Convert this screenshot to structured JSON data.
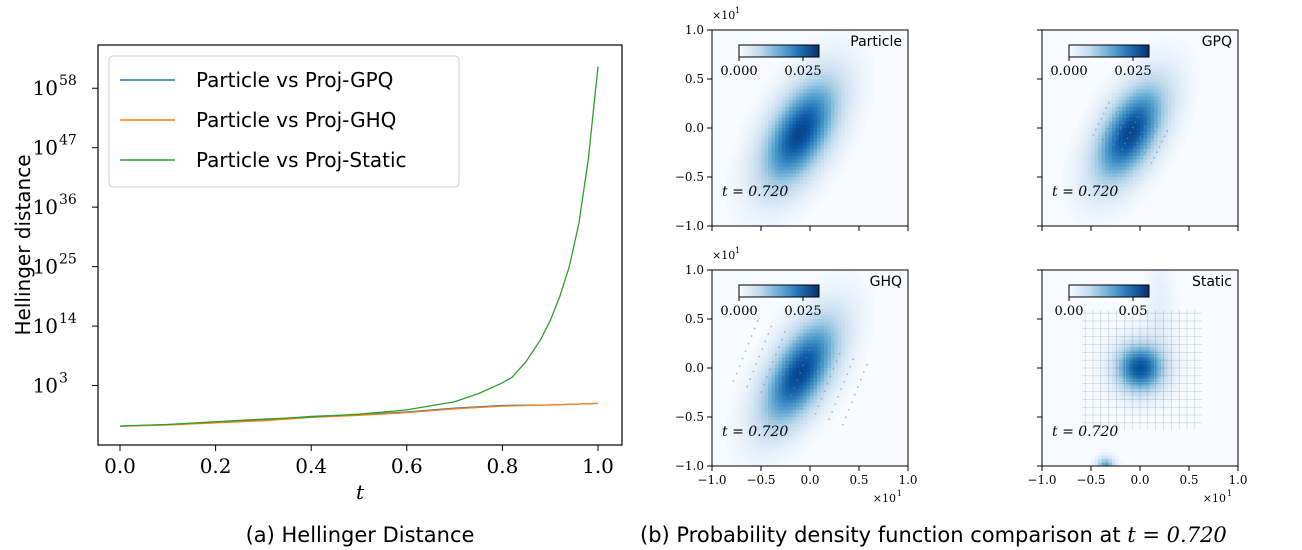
{
  "chart_data": [
    {
      "type": "line",
      "ylabel": "Hellinger distance",
      "xlabel": "t",
      "caption": "(a) Hellinger Distance",
      "xlim": [
        0.0,
        1.0
      ],
      "ylog": true,
      "ylim_log10": [
        -8,
        66
      ],
      "x_ticks": [
        "0.0",
        "0.2",
        "0.4",
        "0.6",
        "0.8",
        "1.0"
      ],
      "y_ticks": [
        {
          "base": "10",
          "exp": "58",
          "log10": 58
        },
        {
          "base": "10",
          "exp": "47",
          "log10": 47
        },
        {
          "base": "10",
          "exp": "36",
          "log10": 36
        },
        {
          "base": "10",
          "exp": "25",
          "log10": 25
        },
        {
          "base": "10",
          "exp": "14",
          "log10": 14
        },
        {
          "base": "10",
          "exp": "3",
          "log10": 3
        }
      ],
      "legend_position": "top-left",
      "series": [
        {
          "name": "Particle vs Proj-GPQ",
          "color": "#1f77b4",
          "x": [
            0.0,
            0.1,
            0.2,
            0.3,
            0.4,
            0.5,
            0.6,
            0.7,
            0.8,
            0.9,
            1.0
          ],
          "log10_y": [
            -4.5,
            -4.2,
            -3.8,
            -3.4,
            -2.7,
            -2.4,
            -1.9,
            -1.2,
            -0.7,
            -0.6,
            -0.3
          ]
        },
        {
          "name": "Particle vs Proj-GHQ",
          "color": "#ff7f0e",
          "x": [
            0.0,
            0.1,
            0.2,
            0.3,
            0.4,
            0.5,
            0.6,
            0.7,
            0.8,
            0.9,
            1.0
          ],
          "log10_y": [
            -4.5,
            -4.3,
            -3.9,
            -3.5,
            -2.9,
            -2.5,
            -2.0,
            -1.3,
            -0.8,
            -0.6,
            -0.3
          ]
        },
        {
          "name": "Particle vs Proj-Static",
          "color": "#2ca02c",
          "x": [
            0.0,
            0.1,
            0.2,
            0.3,
            0.4,
            0.5,
            0.6,
            0.7,
            0.75,
            0.8,
            0.82,
            0.85,
            0.88,
            0.9,
            0.92,
            0.94,
            0.96,
            0.98,
            1.0
          ],
          "log10_y": [
            -4.5,
            -4.2,
            -3.7,
            -3.2,
            -2.8,
            -2.3,
            -1.5,
            0.0,
            1.5,
            3.5,
            4.5,
            7.5,
            11.5,
            15.0,
            19.5,
            25.0,
            33.0,
            45.0,
            62.0
          ]
        }
      ]
    },
    {
      "type": "heatmap",
      "caption_text": "(b) Probability density function comparison at ",
      "caption_math": "t = 0.720",
      "axis_multiplier_base": "×10",
      "axis_multiplier_exp": "1",
      "x_ticks": [
        "−1.0",
        "−0.5",
        "0.0",
        "0.5",
        "1.0"
      ],
      "y_ticks": [
        "1.0",
        "0.5",
        "0.0",
        "−0.5",
        "−1.0"
      ],
      "panels": [
        {
          "name": "Particle",
          "time_label": "t = 0.720",
          "cb_min": "0.000",
          "cb_mid": "0.025",
          "mode": "gaussian",
          "center": [
            -0.1,
            -0.05
          ],
          "sigma": [
            0.27,
            0.38
          ],
          "rho": 0.55
        },
        {
          "name": "GPQ",
          "time_label": "t = 0.720",
          "cb_min": "0.000",
          "cb_mid": "0.025",
          "mode": "gaussian",
          "center": [
            -0.1,
            -0.05
          ],
          "sigma": [
            0.25,
            0.35
          ],
          "rho": 0.55,
          "nodes": "gpq"
        },
        {
          "name": "GHQ",
          "time_label": "t = 0.720",
          "cb_min": "0.000",
          "cb_mid": "0.025",
          "mode": "gaussian",
          "center": [
            -0.1,
            -0.05
          ],
          "sigma": [
            0.27,
            0.38
          ],
          "rho": 0.6,
          "nodes": "ghq"
        },
        {
          "name": "Static",
          "time_label": "t = 0.720",
          "cb_min": "0.00",
          "cb_mid": "0.05",
          "mode": "static",
          "center": [
            0.0,
            0.0
          ],
          "sigma": [
            0.17,
            0.17
          ],
          "rho": 0.0
        }
      ]
    }
  ]
}
